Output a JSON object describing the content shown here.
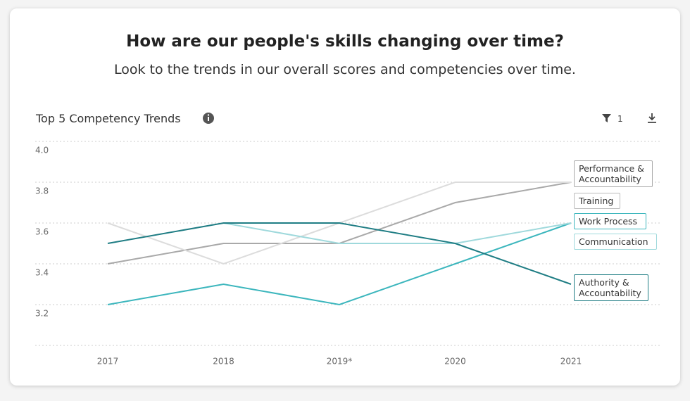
{
  "header": {
    "title": "How are our people's skills changing over time?",
    "subtitle": "Look to the trends in our overall scores and competencies over time."
  },
  "chart_data": {
    "type": "line",
    "title": "Top 5 Competency Trends",
    "filter_count": 1,
    "categories": [
      "2017",
      "2018",
      "2019*",
      "2020",
      "2021"
    ],
    "ylim": [
      3.0,
      4.0
    ],
    "yticks": [
      3.2,
      3.4,
      3.6,
      3.8,
      {
        "value": 4,
        "label": "4.0"
      }
    ],
    "grid": true,
    "series": [
      {
        "name": "Performance & Accountability",
        "color": "#a9a9a9",
        "values": [
          3.4,
          3.5,
          3.5,
          3.7,
          3.8
        ]
      },
      {
        "name": "Training",
        "color": "#dcdcdc",
        "values": [
          3.6,
          3.4,
          3.6,
          3.8,
          3.8
        ]
      },
      {
        "name": "Work Process",
        "color": "#3cb6bd",
        "values": [
          3.2,
          3.3,
          3.2,
          3.4,
          3.6
        ]
      },
      {
        "name": "Communication",
        "color": "#9fd9dc",
        "values": [
          null,
          3.6,
          3.5,
          3.5,
          3.6
        ]
      },
      {
        "name": "Authority & Accountability",
        "color": "#1f7d84",
        "values": [
          3.5,
          3.6,
          3.6,
          3.5,
          3.3
        ]
      }
    ]
  }
}
